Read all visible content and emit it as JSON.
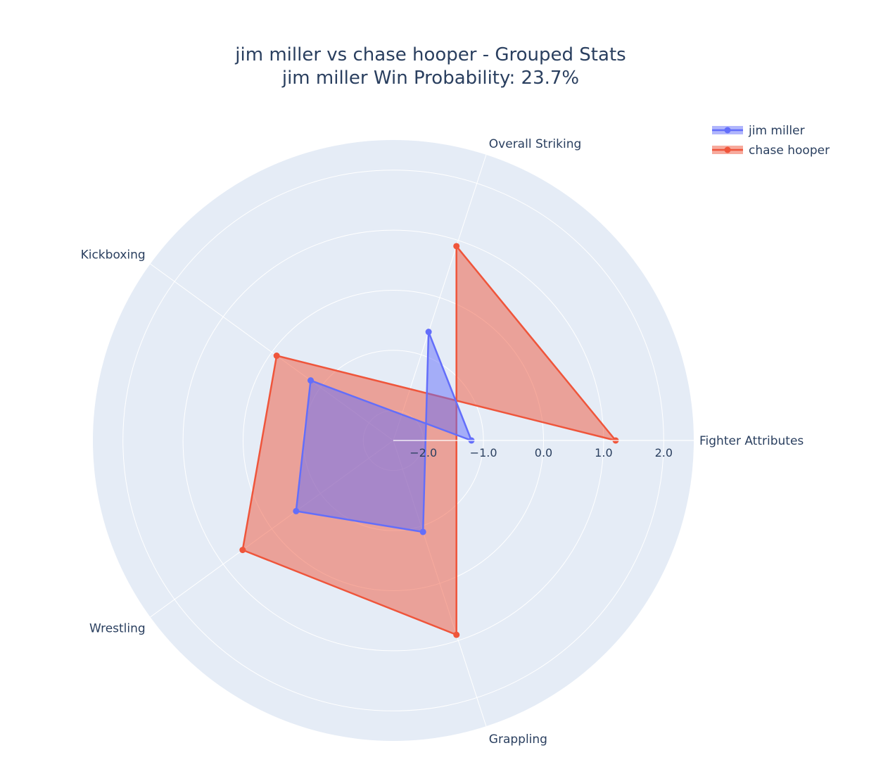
{
  "chart_data": {
    "type": "radar",
    "title": "jim miller vs chase hooper - Grouped Stats",
    "subtitle": "jim miller Win Probability: 23.7%",
    "categories": [
      "Fighter Attributes",
      "Overall Striking",
      "Grappling",
      "Wrestling",
      "Kickboxing"
    ],
    "radial_range": [
      -2.5,
      2.5
    ],
    "radial_ticks": [
      -2.0,
      -1.0,
      0.0,
      1.0,
      2.0
    ],
    "radial_tick_labels": [
      "−2.0",
      "−1.0",
      "0.0",
      "1.0",
      "2.0"
    ],
    "legend_position": "top-right",
    "series": [
      {
        "name": "jim miller",
        "color": "#636efa",
        "fill": "rgba(99,110,250,0.5)",
        "values": [
          -1.2,
          -0.6,
          -0.9,
          -0.5,
          -0.8
        ]
      },
      {
        "name": "chase hooper",
        "color": "#ef553b",
        "fill": "rgba(239,85,59,0.5)",
        "values": [
          1.2,
          0.9,
          0.9,
          0.6,
          -0.1
        ]
      }
    ],
    "background_color": "#e5ecf6",
    "grid_color": "#ffffff"
  }
}
